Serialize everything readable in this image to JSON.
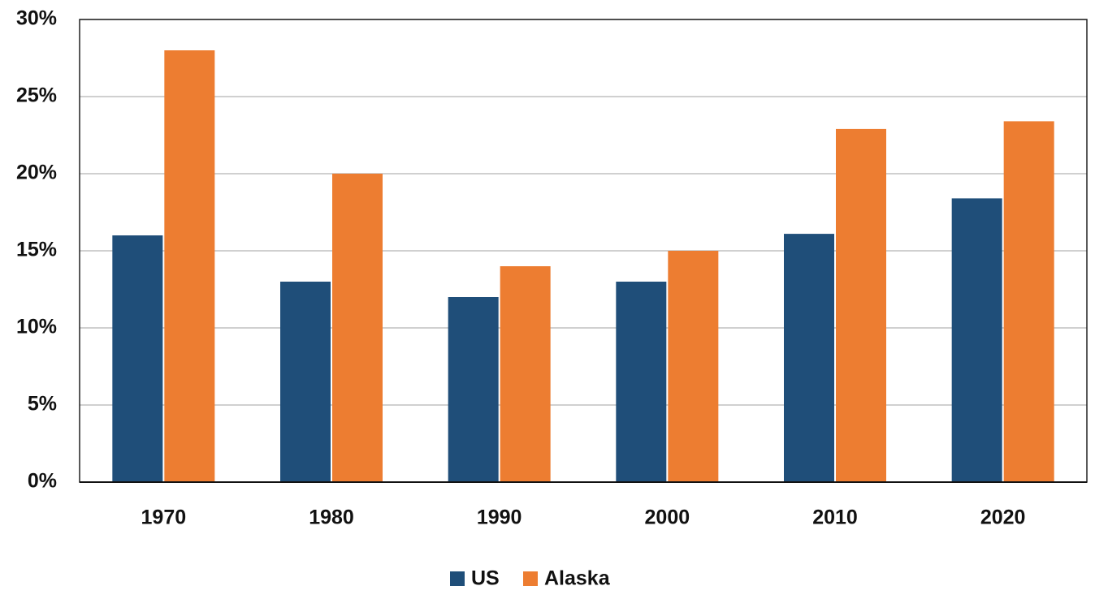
{
  "chart_data": {
    "type": "bar",
    "categories": [
      "1970",
      "1980",
      "1990",
      "2000",
      "2010",
      "2020"
    ],
    "series": [
      {
        "name": "US",
        "color": "#1f4e79",
        "values": [
          16,
          13,
          12,
          13,
          16.1,
          18.4
        ]
      },
      {
        "name": "Alaska",
        "color": "#ed7d31",
        "values": [
          28,
          20,
          14,
          15,
          22.9,
          23.4
        ]
      }
    ],
    "ylim": [
      0,
      30
    ],
    "yticks": [
      {
        "value": 0,
        "label": "0%"
      },
      {
        "value": 5,
        "label": "5%"
      },
      {
        "value": 10,
        "label": "10%"
      },
      {
        "value": 15,
        "label": "15%"
      },
      {
        "value": 20,
        "label": "20%"
      },
      {
        "value": 25,
        "label": "25%"
      },
      {
        "value": 30,
        "label": "30%"
      }
    ],
    "grid": true,
    "legend": "bottom"
  }
}
